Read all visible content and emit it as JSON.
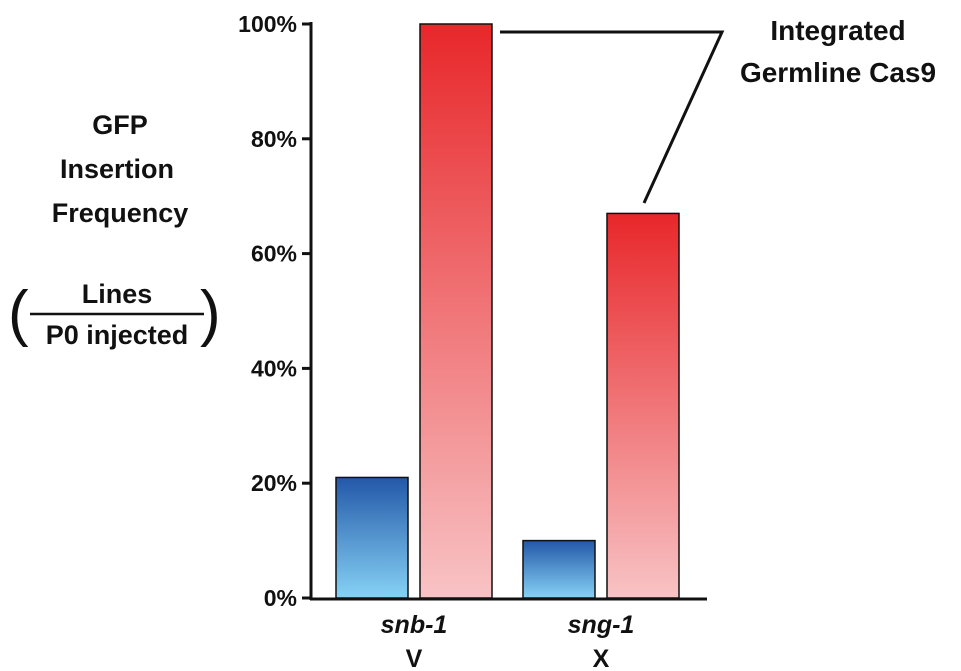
{
  "chart_data": {
    "type": "bar",
    "title": "",
    "ylabel_lines": [
      "GFP",
      "Insertion",
      "Frequency"
    ],
    "ylabel_fraction": {
      "numerator": "Lines",
      "denominator": "P0 injected"
    },
    "ylim": [
      0,
      100
    ],
    "yticks": [
      "0%",
      "20%",
      "40%",
      "60%",
      "80%",
      "100%"
    ],
    "categories": [
      {
        "gene": "snb-1",
        "chromosome": "V"
      },
      {
        "gene": "sng-1",
        "chromosome": "X"
      }
    ],
    "series": [
      {
        "values": [
          21,
          10
        ],
        "color": "#2b62ad",
        "color_light": "#86d2f5"
      },
      {
        "values": [
          100,
          67
        ],
        "color": "#e8272a",
        "color_light": "#f8c3c5"
      }
    ],
    "annotation": {
      "lines": [
        "Integrated",
        "Germline Cas9"
      ]
    },
    "grid": false
  }
}
